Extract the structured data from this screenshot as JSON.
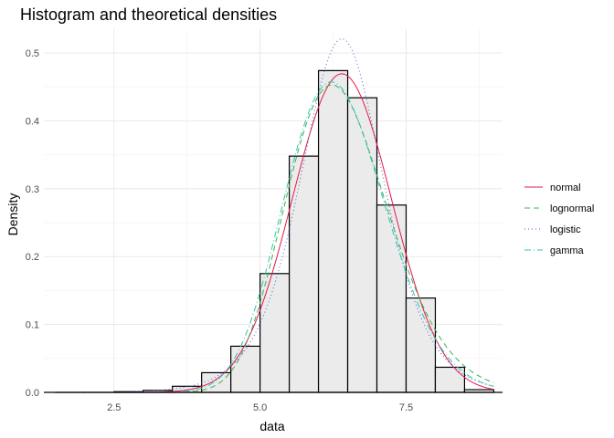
{
  "chart_data": {
    "type": "histogram",
    "title": "Histogram and theoretical densities",
    "xlabel": "data",
    "ylabel": "Density",
    "xlim": [
      1.3,
      9.15
    ],
    "ylim": [
      0,
      0.535
    ],
    "x_ticks": [
      2.5,
      5.0,
      7.5
    ],
    "x_tick_labels": [
      "2.5",
      "5.0",
      "7.5"
    ],
    "y_ticks": [
      0.0,
      0.1,
      0.2,
      0.3,
      0.4,
      0.5
    ],
    "y_tick_labels": [
      "0.0",
      "0.1",
      "0.2",
      "0.3",
      "0.4",
      "0.5"
    ],
    "grid": true,
    "legend_position": "right",
    "histogram": {
      "fill": "#ebebeb",
      "border": "#000000",
      "bins": [
        {
          "x0": 1.5,
          "x1": 2.0,
          "density": 0.0
        },
        {
          "x0": 2.0,
          "x1": 2.5,
          "density": 0.0
        },
        {
          "x0": 2.5,
          "x1": 3.0,
          "density": 0.001
        },
        {
          "x0": 3.0,
          "x1": 3.5,
          "density": 0.003
        },
        {
          "x0": 3.5,
          "x1": 4.0,
          "density": 0.009
        },
        {
          "x0": 4.0,
          "x1": 4.5,
          "density": 0.029
        },
        {
          "x0": 4.5,
          "x1": 5.0,
          "density": 0.068
        },
        {
          "x0": 5.0,
          "x1": 5.5,
          "density": 0.175
        },
        {
          "x0": 5.5,
          "x1": 6.0,
          "density": 0.348
        },
        {
          "x0": 6.0,
          "x1": 6.5,
          "density": 0.474
        },
        {
          "x0": 6.5,
          "x1": 7.0,
          "density": 0.434
        },
        {
          "x0": 7.0,
          "x1": 7.5,
          "density": 0.276
        },
        {
          "x0": 7.5,
          "x1": 8.0,
          "density": 0.139
        },
        {
          "x0": 8.0,
          "x1": 8.5,
          "density": 0.037
        },
        {
          "x0": 8.5,
          "x1": 9.0,
          "density": 0.004
        }
      ]
    },
    "curve_range": [
      1.5,
      9.0
    ],
    "series": [
      {
        "name": "normal",
        "color": "#e6194b",
        "dash": "",
        "distribution": "normal",
        "params": {
          "mean": 6.4,
          "sd": 0.85
        }
      },
      {
        "name": "lognormal",
        "color": "#3cb44b",
        "dash": "6,4",
        "distribution": "lognormal",
        "params": {
          "meanlog": 1.849,
          "sdlog": 0.14
        }
      },
      {
        "name": "logistic",
        "color": "#4363d8",
        "dash": "1,3",
        "distribution": "logistic",
        "params": {
          "location": 6.4,
          "scale": 0.48
        }
      },
      {
        "name": "gamma",
        "color": "#2ec4b6",
        "dash": "7,3,1,3",
        "distribution": "gamma",
        "params": {
          "shape": 52,
          "rate": 8.2
        }
      }
    ]
  }
}
